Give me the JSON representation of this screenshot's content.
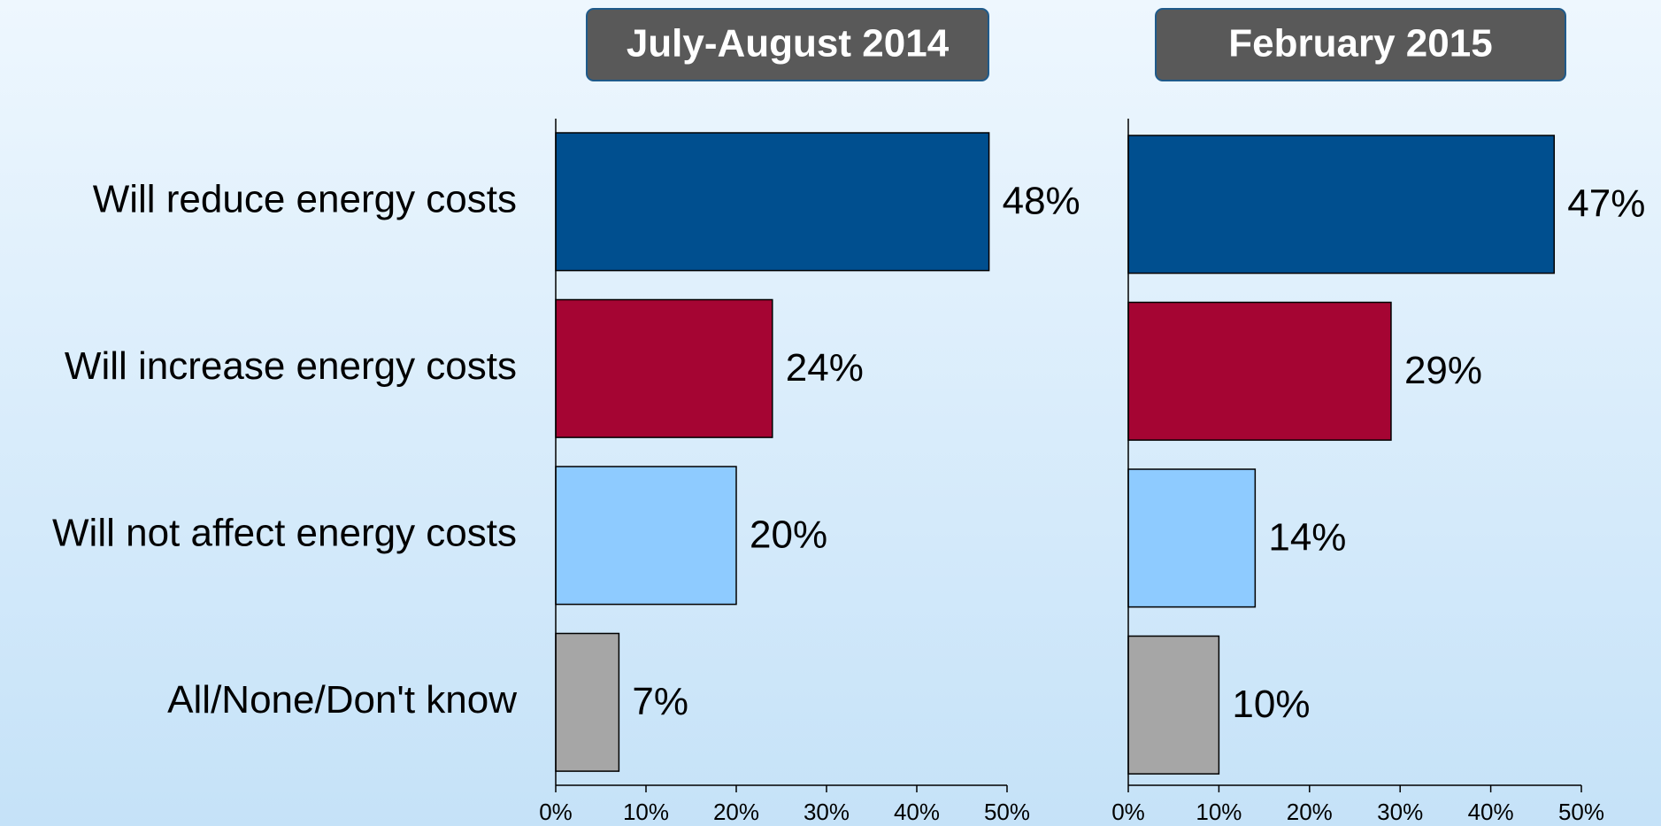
{
  "chart_data": [
    {
      "type": "bar",
      "orientation": "horizontal",
      "title": "July-August 2014",
      "categories": [
        "Will reduce energy costs",
        "Will increase energy costs",
        "Will not affect energy costs",
        "All/None/Don't know"
      ],
      "values": [
        48,
        24,
        20,
        7
      ],
      "value_labels": [
        "48%",
        "24%",
        "20%",
        "7%"
      ],
      "colors": [
        "#004f8f",
        "#a50533",
        "#8ecbff",
        "#a6a6a6"
      ],
      "xlim": [
        0,
        50
      ],
      "xticks": [
        {
          "value": 0,
          "label": "0%"
        },
        {
          "value": 10,
          "label": "10%"
        },
        {
          "value": 20,
          "label": "20%"
        },
        {
          "value": 30,
          "label": "30%"
        },
        {
          "value": 40,
          "label": "40%"
        },
        {
          "value": 50,
          "label": "50%"
        }
      ]
    },
    {
      "type": "bar",
      "orientation": "horizontal",
      "title": "February 2015",
      "categories": [
        null,
        null,
        null,
        null
      ],
      "values": [
        47,
        29,
        14,
        10
      ],
      "value_labels": [
        "47%",
        "29%",
        "14%",
        "10%"
      ],
      "colors": [
        "#004f8f",
        "#a50533",
        "#8ecbff",
        "#a6a6a6"
      ],
      "xlim": [
        0,
        50
      ],
      "xticks": [
        {
          "value": 0,
          "label": "0%"
        },
        {
          "value": 10,
          "label": "10%"
        },
        {
          "value": 20,
          "label": "20%"
        },
        {
          "value": 30,
          "label": "30%"
        },
        {
          "value": 40,
          "label": "40%"
        },
        {
          "value": 50,
          "label": "50%"
        }
      ]
    }
  ]
}
